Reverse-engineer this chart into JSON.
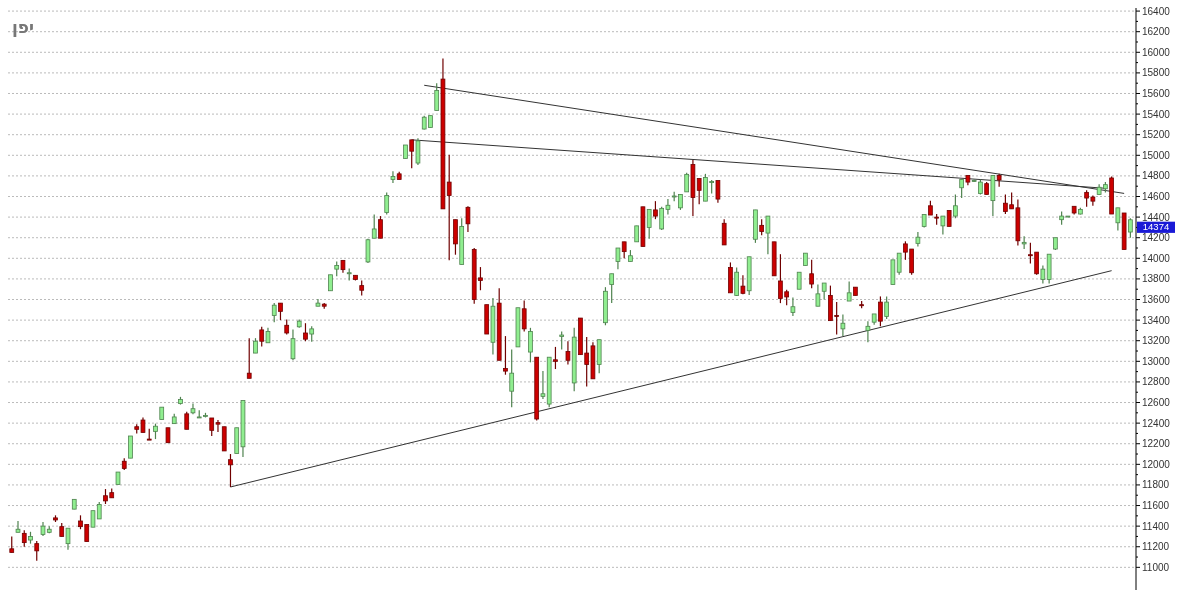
{
  "chart_data": {
    "type": "candlestick",
    "title": "יפן",
    "categories": [
      null,
      null,
      null,
      null,
      null,
      null,
      null,
      null,
      null,
      null,
      null,
      null,
      null,
      null,
      null,
      null,
      null,
      null,
      null,
      null,
      null,
      null,
      null,
      null,
      null,
      null,
      null,
      null,
      null,
      null,
      null,
      null,
      null,
      null,
      null,
      null,
      null,
      null,
      null,
      null,
      null,
      null,
      null,
      null,
      null,
      null,
      null,
      null,
      null,
      null,
      null,
      null,
      null,
      null,
      null,
      null,
      null,
      null,
      null,
      null,
      null,
      null,
      null,
      null,
      null,
      null,
      null,
      null,
      null,
      null,
      null,
      null,
      null,
      null,
      null,
      null,
      null,
      null,
      null,
      null,
      null,
      null,
      null,
      null,
      null,
      null,
      null,
      null,
      null,
      null,
      null,
      null,
      null,
      null,
      null,
      null,
      null,
      null,
      null,
      null,
      null,
      null,
      null,
      null,
      null,
      null,
      null,
      null,
      null,
      null,
      null,
      null,
      null,
      null,
      null,
      null,
      null,
      null,
      null,
      null,
      null,
      null,
      null,
      null,
      null,
      null,
      null,
      null,
      null,
      null,
      null,
      null,
      null,
      null,
      null,
      null,
      null,
      null,
      null,
      null,
      null,
      null,
      null,
      null,
      null,
      null,
      null,
      null,
      null,
      null,
      null,
      null,
      null,
      null,
      null,
      null,
      null,
      null,
      null,
      null,
      null,
      null,
      null,
      null,
      null,
      null,
      null,
      null,
      null,
      null,
      null,
      null,
      null,
      null,
      null,
      null,
      null,
      null,
      null,
      null
    ],
    "ohlc": [
      [
        11180,
        11300,
        11145,
        11145
      ],
      [
        11340,
        11450,
        11340,
        11370
      ],
      [
        11330,
        11360,
        11200,
        11240
      ],
      [
        11265,
        11345,
        11230,
        11300
      ],
      [
        11230,
        11255,
        11065,
        11160
      ],
      [
        11320,
        11440,
        11305,
        11400
      ],
      [
        11340,
        11400,
        11330,
        11370
      ],
      [
        11480,
        11505,
        11440,
        11460
      ],
      [
        11395,
        11430,
        11300,
        11300
      ],
      [
        11230,
        11380,
        11170,
        11380
      ],
      [
        11565,
        11660,
        11565,
        11660
      ],
      [
        11450,
        11505,
        11370,
        11395
      ],
      [
        11415,
        11415,
        11250,
        11250
      ],
      [
        11390,
        11550,
        11390,
        11550
      ],
      [
        11470,
        11635,
        11470,
        11610
      ],
      [
        11695,
        11760,
        11615,
        11645
      ],
      [
        11725,
        11765,
        11675,
        11675
      ],
      [
        11805,
        11925,
        11805,
        11925
      ],
      [
        12030,
        12060,
        11945,
        11960
      ],
      [
        12060,
        12275,
        12060,
        12275
      ],
      [
        12365,
        12390,
        12300,
        12340
      ],
      [
        12430,
        12455,
        12310,
        12310
      ],
      [
        12245,
        12345,
        12235,
        12235
      ],
      [
        12320,
        12395,
        12245,
        12370
      ],
      [
        12435,
        12555,
        12435,
        12555
      ],
      [
        12355,
        12355,
        12210,
        12210
      ],
      [
        12395,
        12490,
        12395,
        12460
      ],
      [
        12590,
        12655,
        12580,
        12630
      ],
      [
        12490,
        12510,
        12340,
        12340
      ],
      [
        12500,
        12590,
        12485,
        12540
      ],
      [
        12455,
        12525,
        12455,
        12460
      ],
      [
        12470,
        12500,
        12455,
        12475
      ],
      [
        12450,
        12450,
        12275,
        12330
      ],
      [
        12405,
        12430,
        12315,
        12390
      ],
      [
        12365,
        12365,
        12130,
        12130
      ],
      [
        12045,
        12100,
        11780,
        11995
      ],
      [
        12105,
        12355,
        12105,
        12355
      ],
      [
        12170,
        12620,
        12070,
        12620
      ],
      [
        12885,
        13225,
        12835,
        12835
      ],
      [
        13080,
        13225,
        13080,
        13195
      ],
      [
        13305,
        13335,
        13145,
        13195
      ],
      [
        13180,
        13325,
        13180,
        13290
      ],
      [
        13445,
        13565,
        13380,
        13545
      ],
      [
        13565,
        13565,
        13400,
        13485
      ],
      [
        13350,
        13405,
        13260,
        13275
      ],
      [
        13025,
        13310,
        13010,
        13220
      ],
      [
        13335,
        13405,
        13325,
        13390
      ],
      [
        13275,
        13370,
        13195,
        13215
      ],
      [
        13265,
        13340,
        13190,
        13315
      ],
      [
        13535,
        13605,
        13535,
        13565
      ],
      [
        13555,
        13565,
        13510,
        13535
      ],
      [
        13685,
        13840,
        13685,
        13840
      ],
      [
        13895,
        13970,
        13825,
        13930
      ],
      [
        13980,
        13980,
        13860,
        13890
      ],
      [
        13850,
        13900,
        13785,
        13860
      ],
      [
        13835,
        13835,
        13785,
        13795
      ],
      [
        13735,
        13785,
        13640,
        13690
      ],
      [
        13965,
        14190,
        13955,
        14180
      ],
      [
        14195,
        14425,
        14195,
        14285
      ],
      [
        14375,
        14410,
        14195,
        14195
      ],
      [
        14445,
        14640,
        14425,
        14610
      ],
      [
        14765,
        14845,
        14730,
        14795
      ],
      [
        14820,
        14840,
        14765,
        14765
      ],
      [
        14970,
        15100,
        14970,
        15100
      ],
      [
        15150,
        15150,
        14875,
        15040
      ],
      [
        14925,
        15165,
        14905,
        15140
      ],
      [
        15255,
        15385,
        15250,
        15370
      ],
      [
        15270,
        15385,
        15270,
        15385
      ],
      [
        15435,
        15700,
        15435,
        15630
      ],
      [
        15740,
        15940,
        14480,
        14480
      ],
      [
        14740,
        15005,
        13980,
        14610
      ],
      [
        14375,
        14375,
        14035,
        14140
      ],
      [
        13940,
        14390,
        13940,
        14310
      ],
      [
        14495,
        14505,
        14255,
        14335
      ],
      [
        14085,
        14100,
        13560,
        13600
      ],
      [
        13810,
        13915,
        13690,
        13785
      ],
      [
        13550,
        13550,
        13265,
        13265
      ],
      [
        13185,
        13615,
        13065,
        13535
      ],
      [
        13565,
        13710,
        13010,
        13010
      ],
      [
        12930,
        13245,
        12870,
        12905
      ],
      [
        12710,
        13115,
        12555,
        12885
      ],
      [
        13140,
        13520,
        13140,
        13520
      ],
      [
        13510,
        13590,
        13290,
        13315
      ],
      [
        13090,
        13325,
        12990,
        13290
      ],
      [
        13040,
        13040,
        12425,
        12440
      ],
      [
        12660,
        12905,
        12635,
        12685
      ],
      [
        12585,
        13040,
        12555,
        13040
      ],
      [
        13015,
        13140,
        12925,
        13000
      ],
      [
        13240,
        13290,
        13115,
        13255
      ],
      [
        13095,
        13195,
        12970,
        13010
      ],
      [
        12790,
        13325,
        12710,
        13235
      ],
      [
        13420,
        13420,
        13065,
        13065
      ],
      [
        13080,
        13235,
        12755,
        12970
      ],
      [
        13150,
        13185,
        12830,
        12830
      ],
      [
        12970,
        13210,
        12885,
        13210
      ],
      [
        13375,
        13720,
        13350,
        13680
      ],
      [
        13745,
        13850,
        13565,
        13850
      ],
      [
        13970,
        14100,
        13895,
        14100
      ],
      [
        14160,
        14160,
        14000,
        14065
      ],
      [
        13970,
        14080,
        13970,
        14025
      ],
      [
        14160,
        14315,
        14160,
        14315
      ],
      [
        14500,
        14500,
        14115,
        14115
      ],
      [
        14300,
        14475,
        14190,
        14475
      ],
      [
        14470,
        14555,
        14380,
        14410
      ],
      [
        14285,
        14500,
        14275,
        14485
      ],
      [
        14475,
        14575,
        14425,
        14515
      ],
      [
        14600,
        14645,
        14555,
        14605
      ],
      [
        14490,
        14620,
        14470,
        14620
      ],
      [
        14645,
        14830,
        14645,
        14815
      ],
      [
        14910,
        14955,
        14410,
        14590
      ],
      [
        14775,
        14775,
        14525,
        14660
      ],
      [
        14555,
        14820,
        14555,
        14785
      ],
      [
        14735,
        14760,
        14630,
        14745
      ],
      [
        14755,
        14755,
        14540,
        14575
      ],
      [
        14340,
        14380,
        14130,
        14130
      ],
      [
        13910,
        13960,
        13665,
        13665
      ],
      [
        13640,
        13910,
        13635,
        13865
      ],
      [
        13730,
        13835,
        13650,
        13660
      ],
      [
        13685,
        14015,
        13645,
        14015
      ],
      [
        14185,
        14470,
        14150,
        14470
      ],
      [
        14320,
        14380,
        14225,
        14260
      ],
      [
        14245,
        14410,
        14040,
        14410
      ],
      [
        14160,
        14160,
        13830,
        13830
      ],
      [
        13780,
        14040,
        13565,
        13610
      ],
      [
        13675,
        13695,
        13545,
        13625
      ],
      [
        13475,
        13620,
        13440,
        13530
      ],
      [
        13700,
        13865,
        13700,
        13865
      ],
      [
        13930,
        14050,
        13930,
        14050
      ],
      [
        13850,
        13985,
        13710,
        13750
      ],
      [
        13535,
        13745,
        13535,
        13655
      ],
      [
        13680,
        13760,
        13600,
        13760
      ],
      [
        13640,
        13735,
        13395,
        13395
      ],
      [
        13445,
        13575,
        13260,
        13435
      ],
      [
        13315,
        13455,
        13245,
        13370
      ],
      [
        13585,
        13775,
        13585,
        13665
      ],
      [
        13720,
        13720,
        13640,
        13640
      ],
      [
        13550,
        13585,
        13515,
        13540
      ],
      [
        13300,
        13390,
        13185,
        13340
      ],
      [
        13380,
        13460,
        13355,
        13460
      ],
      [
        13575,
        13630,
        13340,
        13390
      ],
      [
        13435,
        13630,
        13410,
        13575
      ],
      [
        13745,
        13985,
        13745,
        13985
      ],
      [
        13865,
        14050,
        13840,
        14050
      ],
      [
        14140,
        14165,
        13985,
        14060
      ],
      [
        14090,
        14090,
        13840,
        13860
      ],
      [
        14145,
        14255,
        14115,
        14205
      ],
      [
        14310,
        14425,
        14300,
        14425
      ],
      [
        14510,
        14560,
        14420,
        14420
      ],
      [
        14400,
        14430,
        14325,
        14390
      ],
      [
        14315,
        14410,
        14230,
        14410
      ],
      [
        14465,
        14465,
        14310,
        14310
      ],
      [
        14410,
        14620,
        14390,
        14510
      ],
      [
        14685,
        14765,
        14585,
        14765
      ],
      [
        14805,
        14805,
        14710,
        14740
      ],
      [
        14750,
        14765,
        14740,
        14755
      ],
      [
        14630,
        14765,
        14620,
        14740
      ],
      [
        14725,
        14740,
        14620,
        14620
      ],
      [
        14560,
        14805,
        14410,
        14805
      ],
      [
        14805,
        14820,
        14695,
        14760
      ],
      [
        14535,
        14620,
        14430,
        14455
      ],
      [
        14520,
        14640,
        14480,
        14480
      ],
      [
        14490,
        14570,
        14125,
        14170
      ],
      [
        14140,
        14215,
        14090,
        14155
      ],
      [
        14035,
        14150,
        13950,
        14025
      ],
      [
        14060,
        14060,
        13840,
        13850
      ],
      [
        13795,
        13930,
        13755,
        13895
      ],
      [
        13795,
        14040,
        13755,
        14040
      ],
      [
        14090,
        14200,
        14080,
        14200
      ],
      [
        14375,
        14455,
        14325,
        14410
      ],
      [
        14405,
        14410,
        14400,
        14410
      ],
      [
        14505,
        14505,
        14425,
        14440
      ],
      [
        14430,
        14490,
        14425,
        14475
      ],
      [
        14640,
        14660,
        14500,
        14585
      ],
      [
        14595,
        14610,
        14510,
        14555
      ],
      [
        14620,
        14720,
        14620,
        14690
      ],
      [
        14675,
        14740,
        14640,
        14715
      ],
      [
        14780,
        14795,
        14430,
        14430
      ],
      [
        14345,
        14490,
        14270,
        14490
      ],
      [
        14440,
        14440,
        14085,
        14085
      ],
      [
        14255,
        14390,
        14200,
        14374
      ]
    ],
    "colors": [
      "#cc0000",
      "#90ee90",
      "#cc0000",
      "#90ee90",
      "#cc0000",
      "#90ee90",
      "#90ee90",
      "#cc0000",
      "#cc0000",
      "#90ee90",
      "#90ee90",
      "#cc0000",
      "#cc0000",
      "#90ee90",
      "#90ee90",
      "#cc0000",
      "#cc0000",
      "#90ee90",
      "#cc0000",
      "#90ee90",
      "#cc0000",
      "#cc0000",
      "#cc0000",
      "#90ee90",
      "#90ee90",
      "#cc0000",
      "#90ee90",
      "#90ee90",
      "#cc0000",
      "#90ee90",
      "#90ee90",
      "#90ee90",
      "#cc0000",
      "#cc0000",
      "#cc0000",
      "#cc0000",
      "#90ee90",
      "#90ee90",
      "#cc0000",
      "#90ee90",
      "#cc0000",
      "#90ee90",
      "#90ee90",
      "#cc0000",
      "#cc0000",
      "#90ee90",
      "#90ee90",
      "#cc0000",
      "#90ee90",
      "#90ee90",
      "#cc0000",
      "#90ee90",
      "#90ee90",
      "#cc0000",
      "#90ee90",
      "#cc0000",
      "#cc0000",
      "#90ee90",
      "#90ee90",
      "#cc0000",
      "#90ee90",
      "#90ee90",
      "#cc0000",
      "#90ee90",
      "#cc0000",
      "#90ee90",
      "#90ee90",
      "#90ee90",
      "#90ee90",
      "#cc0000",
      "#cc0000",
      "#cc0000",
      "#90ee90",
      "#cc0000",
      "#cc0000",
      "#cc0000",
      "#cc0000",
      "#90ee90",
      "#cc0000",
      "#cc0000",
      "#90ee90",
      "#90ee90",
      "#cc0000",
      "#90ee90",
      "#cc0000",
      "#90ee90",
      "#90ee90",
      "#cc0000",
      "#90ee90",
      "#cc0000",
      "#90ee90",
      "#cc0000",
      "#cc0000",
      "#cc0000",
      "#90ee90",
      "#90ee90",
      "#90ee90",
      "#90ee90",
      "#cc0000",
      "#90ee90",
      "#90ee90",
      "#cc0000",
      "#90ee90",
      "#cc0000",
      "#90ee90",
      "#90ee90",
      "#90ee90",
      "#90ee90",
      "#90ee90",
      "#cc0000",
      "#cc0000",
      "#90ee90",
      "#90ee90",
      "#cc0000",
      "#cc0000",
      "#cc0000",
      "#90ee90",
      "#cc0000",
      "#90ee90",
      "#90ee90",
      "#cc0000",
      "#90ee90",
      "#cc0000",
      "#cc0000",
      "#cc0000",
      "#90ee90",
      "#90ee90",
      "#90ee90",
      "#cc0000",
      "#90ee90",
      "#90ee90",
      "#cc0000",
      "#cc0000",
      "#90ee90",
      "#90ee90",
      "#cc0000",
      "#cc0000",
      "#90ee90",
      "#90ee90",
      "#cc0000",
      "#90ee90",
      "#90ee90",
      "#90ee90",
      "#cc0000",
      "#cc0000",
      "#90ee90",
      "#90ee90",
      "#cc0000",
      "#cc0000",
      "#90ee90",
      "#cc0000",
      "#90ee90",
      "#90ee90",
      "#cc0000",
      "#90ee90",
      "#90ee90",
      "#cc0000",
      "#90ee90",
      "#cc0000",
      "#cc0000",
      "#cc0000",
      "#cc0000",
      "#90ee90",
      "#cc0000",
      "#cc0000",
      "#90ee90",
      "#90ee90",
      "#90ee90",
      "#90ee90",
      "#90ee90",
      "#cc0000",
      "#90ee90",
      "#cc0000",
      "#cc0000",
      "#90ee90",
      "#90ee90",
      "#cc0000",
      "#90ee90",
      "#cc0000",
      "#90ee90"
    ],
    "series": [
      {
        "type": "line",
        "color": "#333333",
        "values": [
          null,
          null,
          null,
          null,
          null,
          null,
          null,
          null,
          null,
          null,
          null,
          null,
          null,
          null,
          null,
          null,
          null,
          null,
          null,
          null,
          null,
          null,
          null,
          null,
          null,
          null,
          null,
          null,
          null,
          null,
          null,
          null,
          null,
          null,
          null,
          11780,
          null,
          null,
          null,
          null,
          null,
          null,
          null,
          null,
          null,
          null,
          null,
          null,
          null,
          null,
          null,
          null,
          null,
          null,
          null,
          null,
          null,
          null,
          null,
          null,
          null,
          null,
          null,
          null,
          null,
          null,
          null,
          null,
          null,
          null,
          null,
          null,
          null,
          null,
          null,
          null,
          null,
          null,
          null,
          null,
          null,
          null,
          null,
          null,
          null,
          null,
          null,
          null,
          null,
          null,
          null,
          null,
          null,
          null,
          null,
          null,
          null,
          null,
          null,
          null,
          null,
          null,
          null,
          null,
          null,
          null,
          null,
          null,
          null,
          null,
          null,
          null,
          null,
          null,
          null,
          null,
          null,
          null,
          null,
          null,
          null,
          null,
          null,
          null,
          null,
          null,
          null,
          null,
          null,
          null,
          null,
          null,
          null,
          null,
          null,
          null,
          null,
          null,
          null,
          null,
          null,
          null,
          null,
          null,
          null,
          null,
          null,
          null,
          null,
          null,
          null,
          null,
          null,
          null,
          null,
          null,
          null,
          null,
          null,
          null,
          null,
          null,
          null,
          null,
          null,
          null,
          null,
          null,
          null,
          null,
          null,
          null,
          null,
          null,
          null,
          null,
          13880,
          null,
          null,
          null
        ]
      },
      {
        "type": "line",
        "color": "#333333",
        "values": [
          null,
          null,
          null,
          null,
          null,
          null,
          null,
          null,
          null,
          null,
          null,
          null,
          null,
          null,
          null,
          null,
          null,
          null,
          null,
          null,
          null,
          null,
          null,
          null,
          null,
          null,
          null,
          null,
          null,
          null,
          null,
          null,
          null,
          null,
          null,
          null,
          null,
          null,
          null,
          null,
          null,
          null,
          null,
          null,
          null,
          null,
          null,
          null,
          null,
          null,
          null,
          null,
          null,
          null,
          null,
          null,
          null,
          null,
          null,
          null,
          null,
          null,
          null,
          null,
          null,
          null,
          15680,
          null,
          null,
          null,
          null,
          null,
          null,
          null,
          null,
          null,
          null,
          null,
          null,
          null,
          null,
          null,
          null,
          null,
          null,
          null,
          null,
          null,
          null,
          null,
          null,
          null,
          null,
          null,
          null,
          null,
          null,
          null,
          null,
          null,
          null,
          null,
          null,
          null,
          null,
          null,
          null,
          null,
          null,
          null,
          null,
          null,
          null,
          null,
          null,
          null,
          null,
          null,
          null,
          null,
          null,
          null,
          null,
          null,
          null,
          null,
          null,
          null,
          null,
          null,
          null,
          null,
          null,
          null,
          null,
          null,
          null,
          null,
          null,
          null,
          null,
          null,
          null,
          null,
          null,
          null,
          null,
          null,
          null,
          null,
          null,
          null,
          null,
          null,
          null,
          null,
          null,
          null,
          null,
          null,
          null,
          null,
          null,
          null,
          null,
          null,
          null,
          null,
          null,
          null,
          null,
          null,
          null,
          null,
          null,
          null,
          null,
          null,
          14630,
          null
        ]
      },
      {
        "type": "line",
        "color": "#333333",
        "values": [
          null,
          null,
          null,
          null,
          null,
          null,
          null,
          null,
          null,
          null,
          null,
          null,
          null,
          null,
          null,
          null,
          null,
          null,
          null,
          null,
          null,
          null,
          null,
          null,
          null,
          null,
          null,
          null,
          null,
          null,
          null,
          null,
          null,
          null,
          null,
          null,
          null,
          null,
          null,
          null,
          null,
          null,
          null,
          null,
          null,
          null,
          null,
          null,
          null,
          null,
          null,
          null,
          null,
          null,
          null,
          null,
          null,
          null,
          null,
          null,
          null,
          null,
          null,
          null,
          15150,
          null,
          null,
          null,
          null,
          null,
          null,
          null,
          null,
          null,
          null,
          null,
          null,
          null,
          null,
          null,
          null,
          null,
          null,
          null,
          null,
          null,
          null,
          null,
          null,
          null,
          null,
          null,
          null,
          null,
          null,
          null,
          null,
          null,
          null,
          null,
          null,
          null,
          null,
          null,
          null,
          null,
          null,
          null,
          null,
          null,
          null,
          null,
          null,
          null,
          null,
          null,
          null,
          null,
          null,
          null,
          null,
          null,
          null,
          null,
          null,
          null,
          null,
          null,
          null,
          null,
          null,
          null,
          null,
          null,
          null,
          null,
          null,
          null,
          null,
          null,
          null,
          null,
          null,
          null,
          null,
          null,
          null,
          null,
          null,
          null,
          null,
          null,
          null,
          null,
          null,
          null,
          null,
          null,
          null,
          null,
          null,
          null,
          null,
          null,
          null,
          null,
          null,
          null,
          null,
          null,
          null,
          null,
          null,
          null,
          null,
          14680,
          null,
          null,
          null,
          null
        ]
      }
    ],
    "ylim": [
      10780,
      16430
    ],
    "yticks": [
      11000,
      11200,
      11400,
      11600,
      11800,
      12000,
      12200,
      12400,
      12600,
      12800,
      13000,
      13200,
      13400,
      13600,
      13800,
      14000,
      14200,
      14400,
      14600,
      14800,
      15000,
      15200,
      15400,
      15600,
      15800,
      16000,
      16200,
      16400
    ],
    "grid": "y",
    "annotations": [
      "14374"
    ]
  }
}
